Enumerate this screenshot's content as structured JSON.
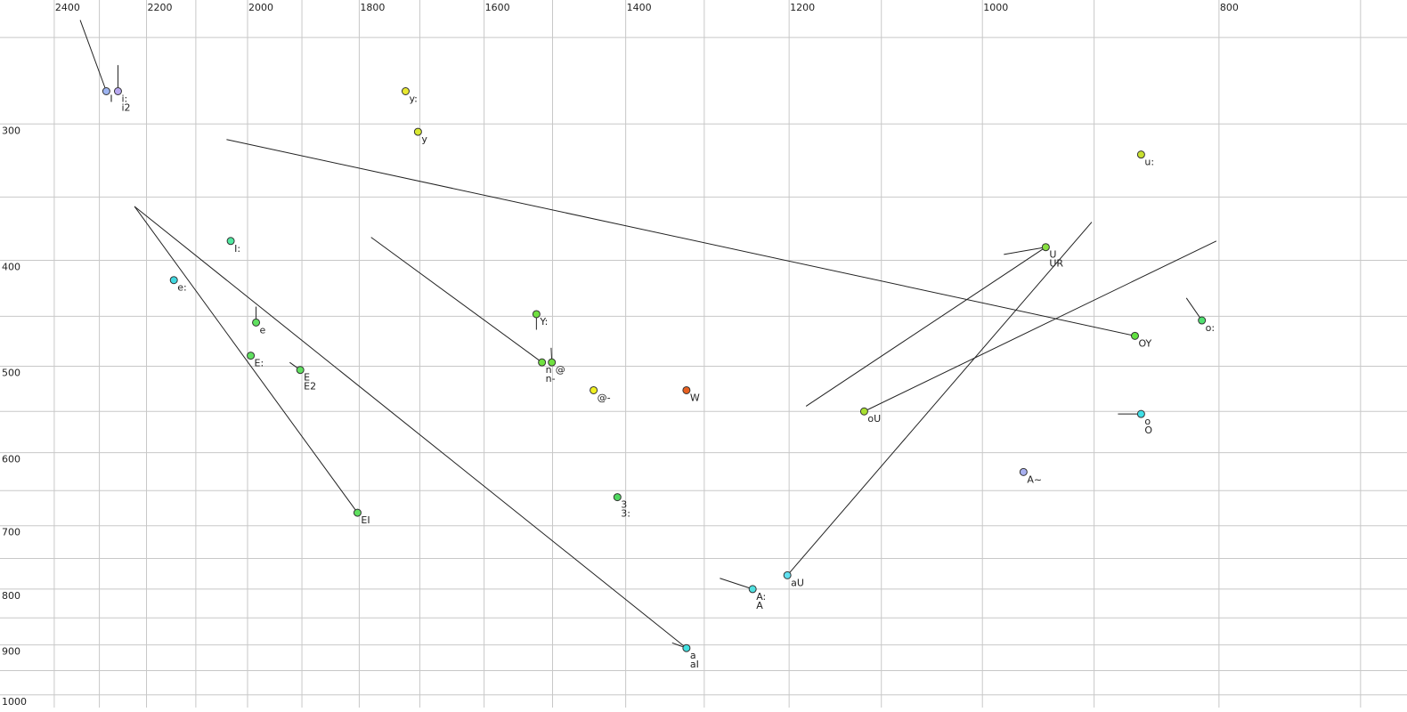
{
  "chart_data": {
    "type": "scatter",
    "xscale": "log",
    "yscale": "log",
    "xlim": [
      2526,
      670
    ],
    "ylim": [
      1027,
      231
    ],
    "xticks": [
      2400,
      2200,
      2000,
      1800,
      1600,
      1400,
      1200,
      1000,
      800
    ],
    "yticks": [
      300,
      400,
      500,
      600,
      700,
      800,
      900,
      1000
    ],
    "xgrid": [
      700,
      800,
      900,
      1000,
      1100,
      1200,
      1300,
      1400,
      1500,
      1600,
      1700,
      1800,
      1900,
      2000,
      2100,
      2200,
      2300,
      2400
    ],
    "ygrid": [
      250,
      300,
      350,
      400,
      450,
      500,
      550,
      600,
      650,
      700,
      750,
      800,
      850,
      900,
      950,
      1000
    ],
    "points": [
      {
        "labels": [
          "I"
        ],
        "color": "#9db4f0",
        "x": 2285,
        "y": 280,
        "trails": [
          [
            2342,
            241
          ]
        ]
      },
      {
        "labels": [
          "i:",
          "i2"
        ],
        "color": "#b8a8f0",
        "x": 2260,
        "y": 280,
        "trails": [
          [
            2260,
            265
          ]
        ]
      },
      {
        "labels": [
          "y:"
        ],
        "color": "#e8e830",
        "x": 1723,
        "y": 280,
        "trails": []
      },
      {
        "labels": [
          "y"
        ],
        "color": "#d8e830",
        "x": 1703,
        "y": 305,
        "trails": []
      },
      {
        "labels": [
          "u:"
        ],
        "color": "#c8e030",
        "x": 861,
        "y": 320,
        "trails": []
      },
      {
        "labels": [
          "I:"
        ],
        "color": "#50e8a0",
        "x": 2032,
        "y": 384,
        "trails": []
      },
      {
        "labels": [
          "e:"
        ],
        "color": "#40d8e0",
        "x": 2144,
        "y": 417,
        "trails": []
      },
      {
        "labels": [
          "e"
        ],
        "color": "#60e060",
        "x": 1984,
        "y": 456,
        "trails": [
          [
            1984,
            441
          ]
        ]
      },
      {
        "labels": [
          "E:"
        ],
        "color": "#60e060",
        "x": 1994,
        "y": 489,
        "trails": []
      },
      {
        "labels": [
          "E",
          "E2"
        ],
        "color": "#60e060",
        "x": 1903,
        "y": 504,
        "trails": [
          [
            1922,
            496
          ]
        ]
      },
      {
        "labels": [
          "EI"
        ],
        "color": "#60e060",
        "x": 1803,
        "y": 681,
        "trails": [
          [
            2225,
            357
          ]
        ]
      },
      {
        "labels": [
          "Y:"
        ],
        "color": "#70e040",
        "x": 1523,
        "y": 448,
        "trails": [
          [
            1523,
            463
          ]
        ]
      },
      {
        "labels": [
          "n",
          "n-"
        ],
        "color": "#70e040",
        "x": 1515,
        "y": 496,
        "trails": [
          [
            1780,
            381
          ]
        ]
      },
      {
        "labels": [
          "@"
        ],
        "color": "#70e040",
        "x": 1501,
        "y": 496,
        "trails": [
          [
            1502,
            481
          ]
        ]
      },
      {
        "labels": [
          "@-"
        ],
        "color": "#f0f020",
        "x": 1443,
        "y": 526,
        "trails": []
      },
      {
        "labels": [
          "W"
        ],
        "color": "#e86020",
        "x": 1322,
        "y": 526,
        "trails": []
      },
      {
        "labels": [
          "3",
          "3:"
        ],
        "color": "#50d860",
        "x": 1411,
        "y": 659,
        "trails": []
      },
      {
        "labels": [
          "a",
          "aI"
        ],
        "color": "#40e0e0",
        "x": 1322,
        "y": 906,
        "trails": [
          [
            2225,
            357
          ],
          [
            1340,
            896
          ]
        ]
      },
      {
        "labels": [
          "A:",
          "A"
        ],
        "color": "#50e0e0",
        "x": 1242,
        "y": 800,
        "trails": [
          [
            1281,
            782
          ]
        ]
      },
      {
        "labels": [
          "aU"
        ],
        "color": "#60e0f0",
        "x": 1202,
        "y": 777,
        "trails": [
          [
            902,
            369
          ]
        ]
      },
      {
        "labels": [
          "oU"
        ],
        "color": "#a8e030",
        "x": 1118,
        "y": 550,
        "trails": [
          [
            802,
            384
          ]
        ]
      },
      {
        "labels": [
          "U",
          "UR"
        ],
        "color": "#88e040",
        "x": 942,
        "y": 389,
        "trails": [
          [
            980,
            395
          ],
          [
            1181,
            544
          ]
        ]
      },
      {
        "labels": [
          "OY"
        ],
        "color": "#60e040",
        "x": 866,
        "y": 469,
        "trails": [
          [
            2040,
            310
          ]
        ]
      },
      {
        "labels": [
          "o:"
        ],
        "color": "#50e070",
        "x": 813,
        "y": 454,
        "trails": [
          [
            825,
            433
          ]
        ]
      },
      {
        "labels": [
          "o",
          "O"
        ],
        "color": "#40e0e8",
        "x": 861,
        "y": 553,
        "trails": [
          [
            880,
            553
          ]
        ]
      },
      {
        "labels": [
          "A~"
        ],
        "color": "#a8b0f0",
        "x": 962,
        "y": 625,
        "trails": []
      }
    ]
  }
}
